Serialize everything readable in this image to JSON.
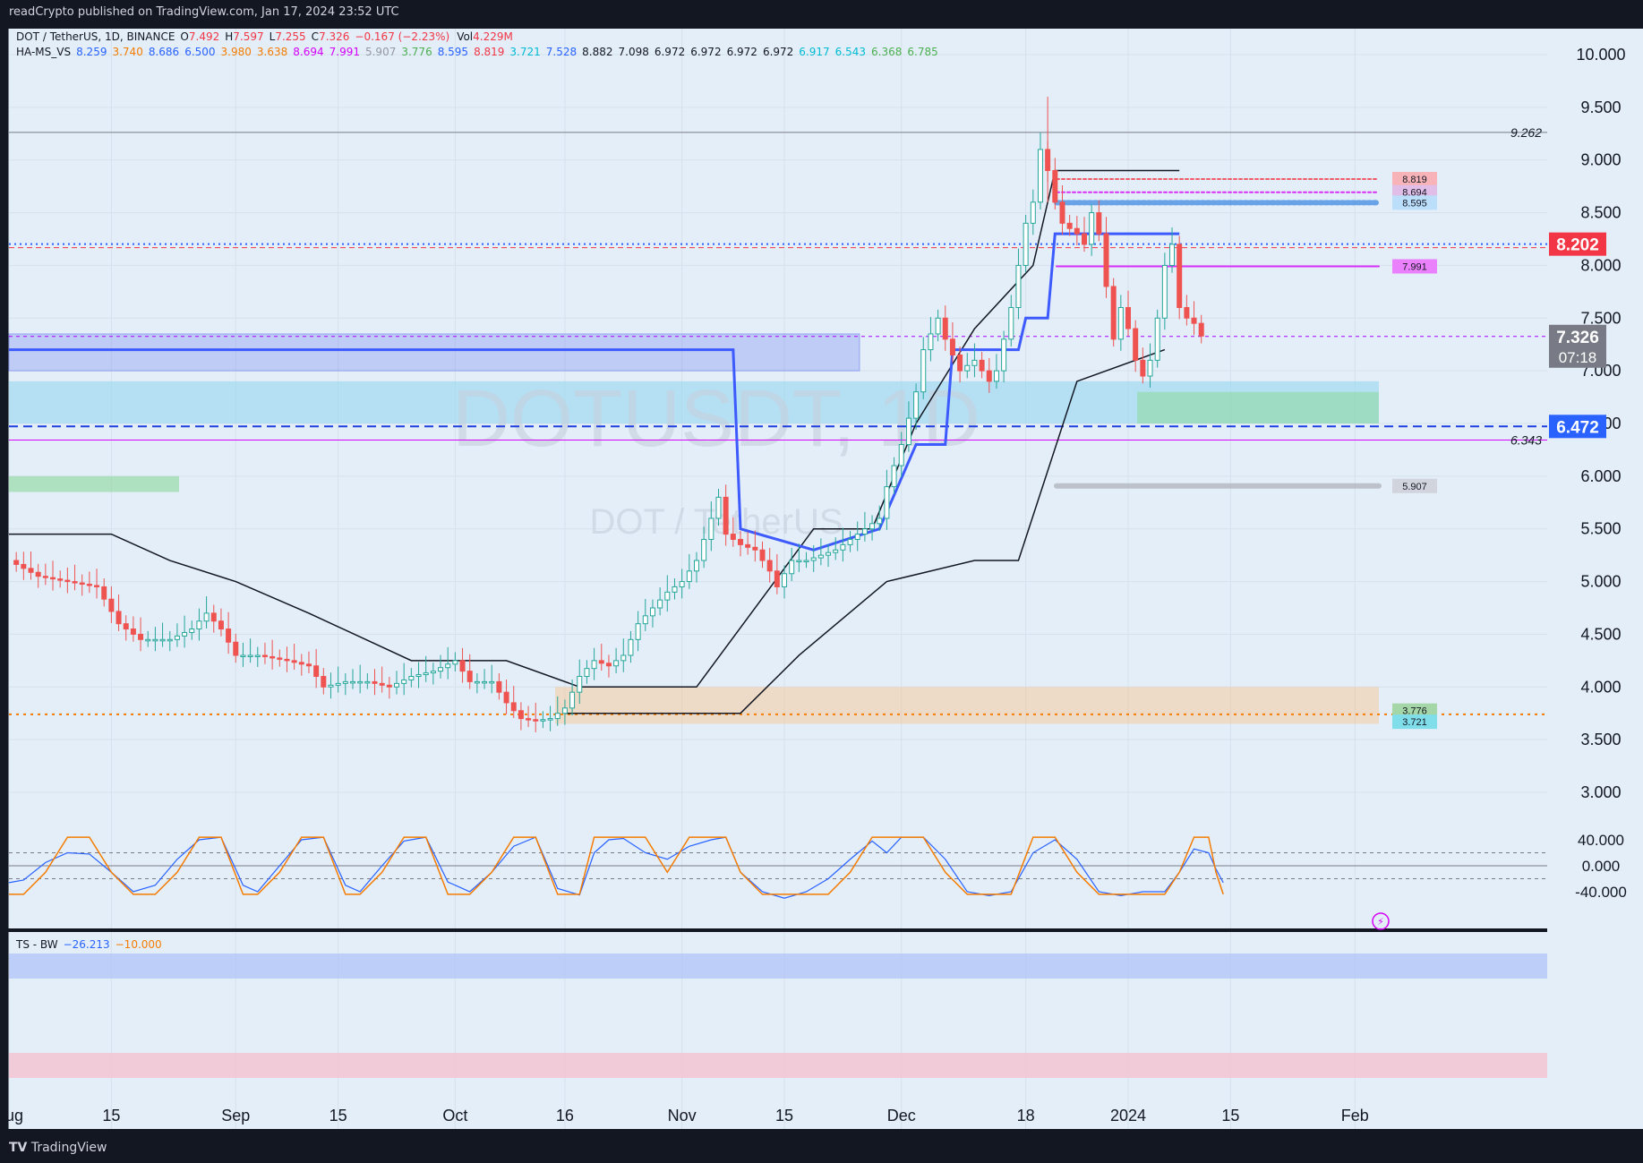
{
  "header": {
    "published_by": "readCrypto published on TradingView.com, Jan 17, 2024 23:52 UTC"
  },
  "footer": {
    "brand": "TradingView"
  },
  "legend": {
    "symbol": "DOT / TetherUS, 1D, BINANCE",
    "ohlc": [
      {
        "k": "O",
        "v": "7.492"
      },
      {
        "k": "H",
        "v": "7.597"
      },
      {
        "k": "L",
        "v": "7.255"
      },
      {
        "k": "C",
        "v": "7.326"
      }
    ],
    "change": "−0.167 (−2.23%)",
    "vol_label": "Vol",
    "vol_value": "4.229M",
    "indicator_name": "HA-MS_VS",
    "indicator_values": [
      {
        "v": "8.259",
        "c": "#2962ff"
      },
      {
        "v": "3.740",
        "c": "#f57c00"
      },
      {
        "v": "8.686",
        "c": "#2962ff"
      },
      {
        "v": "6.500",
        "c": "#2962ff"
      },
      {
        "v": "3.980",
        "c": "#f57c00"
      },
      {
        "v": "3.638",
        "c": "#f57c00"
      },
      {
        "v": "8.694",
        "c": "#d500f9"
      },
      {
        "v": "7.991",
        "c": "#d500f9"
      },
      {
        "v": "5.907",
        "c": "#9598a1"
      },
      {
        "v": "3.776",
        "c": "#4caf50"
      },
      {
        "v": "8.595",
        "c": "#2962ff"
      },
      {
        "v": "8.819",
        "c": "#f23645"
      },
      {
        "v": "3.721",
        "c": "#00bcd4"
      },
      {
        "v": "7.528",
        "c": "#2962ff"
      },
      {
        "v": "8.882",
        "c": "#131722"
      },
      {
        "v": "7.098",
        "c": "#131722"
      },
      {
        "v": "6.972",
        "c": "#131722"
      },
      {
        "v": "6.972",
        "c": "#131722"
      },
      {
        "v": "6.972",
        "c": "#131722"
      },
      {
        "v": "6.972",
        "c": "#131722"
      },
      {
        "v": "6.917",
        "c": "#00bcd4"
      },
      {
        "v": "6.543",
        "c": "#00bcd4"
      },
      {
        "v": "6.368",
        "c": "#4caf50"
      },
      {
        "v": "6.785",
        "c": "#4caf50"
      }
    ]
  },
  "watermark": {
    "line1": "DOTUSDT, 1D",
    "line2": "DOT / TetherUS"
  },
  "price_axis": {
    "ticks": [
      "10.000",
      "9.500",
      "9.000",
      "8.500",
      "8.000",
      "7.500",
      "7.000",
      "6.500",
      "6.000",
      "5.500",
      "5.000",
      "4.500",
      "4.000",
      "3.500",
      "3.000"
    ],
    "tick_values": [
      10,
      9.5,
      9,
      8.5,
      8,
      7.5,
      7,
      6.5,
      6,
      5.5,
      5,
      4.5,
      4,
      3.5,
      3
    ]
  },
  "price_badges": {
    "high_line": {
      "label": "9.262",
      "value": 9.262
    },
    "low_line": {
      "label": "6.343",
      "value": 6.343
    },
    "red_level": {
      "label": "8.202",
      "value": 8.202,
      "color": "#f23645"
    },
    "current": {
      "label": "7.326",
      "countdown": "07:18",
      "value": 7.326,
      "color": "#787b86"
    },
    "purple_level": {
      "label": "7.319",
      "value": 7.319,
      "color": "#aa00ff"
    },
    "blue_level": {
      "label": "6.472",
      "value": 6.472,
      "color": "#2962ff"
    }
  },
  "right_tags": [
    {
      "label": "8.819",
      "value": 8.819,
      "color": "#f7b3b8"
    },
    {
      "label": "8.694",
      "value": 8.694,
      "color": "#e1bee7"
    },
    {
      "label": "8.595",
      "value": 8.595,
      "color": "#bbdefb"
    },
    {
      "label": "7.991",
      "value": 7.991,
      "color": "#ea80fc"
    },
    {
      "label": "5.907",
      "value": 5.907,
      "color": "#d1d4dc"
    },
    {
      "label": "3.776",
      "value": 3.776,
      "color": "#a5d6a7"
    },
    {
      "label": "3.721",
      "value": 3.721,
      "color": "#80deea"
    }
  ],
  "time_axis": {
    "labels": [
      {
        "label": "Aug",
        "day": 0
      },
      {
        "label": "15",
        "day": 14
      },
      {
        "label": "Sep",
        "day": 31
      },
      {
        "label": "15",
        "day": 45
      },
      {
        "label": "Oct",
        "day": 61
      },
      {
        "label": "16",
        "day": 76
      },
      {
        "label": "Nov",
        "day": 92
      },
      {
        "label": "15",
        "day": 106
      },
      {
        "label": "Dec",
        "day": 122
      },
      {
        "label": "18",
        "day": 139
      },
      {
        "label": "2024",
        "day": 153
      },
      {
        "label": "15",
        "day": 167
      },
      {
        "label": "Feb",
        "day": 184
      }
    ]
  },
  "oscillator": {
    "name": "TS - BW",
    "value1": "−26.213",
    "value2": "−10.000",
    "ticks": [
      "40.000",
      "0.000",
      "-40.000"
    ],
    "tick_values": [
      40,
      0,
      -40
    ],
    "lines": [
      20,
      -20
    ]
  },
  "chart_data": {
    "type": "candlestick",
    "title": "DOTUSDT, 1D",
    "x_unit": "days since 2023-08-01",
    "ylim": [
      3.0,
      10.0
    ],
    "grid": true,
    "series": [
      {
        "name": "DOT / TetherUS",
        "type": "candlestick"
      },
      {
        "name": "TS - BW",
        "type": "line"
      }
    ],
    "price_path": [
      [
        0,
        5.2
      ],
      [
        4,
        5.05
      ],
      [
        8,
        5.0
      ],
      [
        12,
        4.95
      ],
      [
        15,
        4.6
      ],
      [
        18,
        4.45
      ],
      [
        22,
        4.45
      ],
      [
        25,
        4.55
      ],
      [
        27,
        4.7
      ],
      [
        29,
        4.55
      ],
      [
        31,
        4.3
      ],
      [
        34,
        4.3
      ],
      [
        38,
        4.25
      ],
      [
        41,
        4.2
      ],
      [
        43,
        4.0
      ],
      [
        46,
        4.05
      ],
      [
        49,
        4.05
      ],
      [
        52,
        4.0
      ],
      [
        55,
        4.1
      ],
      [
        58,
        4.15
      ],
      [
        61,
        4.25
      ],
      [
        63,
        4.05
      ],
      [
        66,
        4.05
      ],
      [
        68,
        3.85
      ],
      [
        70,
        3.7
      ],
      [
        72,
        3.68
      ],
      [
        74,
        3.7
      ],
      [
        76,
        3.8
      ],
      [
        78,
        4.1
      ],
      [
        80,
        4.25
      ],
      [
        82,
        4.2
      ],
      [
        84,
        4.3
      ],
      [
        86,
        4.6
      ],
      [
        88,
        4.75
      ],
      [
        90,
        4.9
      ],
      [
        92,
        5.0
      ],
      [
        94,
        5.2
      ],
      [
        96,
        5.6
      ],
      [
        97,
        5.8
      ],
      [
        98,
        5.45
      ],
      [
        100,
        5.35
      ],
      [
        102,
        5.3
      ],
      [
        104,
        5.1
      ],
      [
        105,
        4.95
      ],
      [
        107,
        5.2
      ],
      [
        109,
        5.2
      ],
      [
        111,
        5.25
      ],
      [
        113,
        5.3
      ],
      [
        115,
        5.4
      ],
      [
        117,
        5.5
      ],
      [
        119,
        5.6
      ],
      [
        120,
        5.9
      ],
      [
        122,
        6.3
      ],
      [
        124,
        6.8
      ],
      [
        125,
        7.2
      ],
      [
        127,
        7.5
      ],
      [
        128,
        7.3
      ],
      [
        130,
        7.0
      ],
      [
        132,
        7.1
      ],
      [
        134,
        6.9
      ],
      [
        135,
        7.0
      ],
      [
        137,
        7.6
      ],
      [
        138,
        8.0
      ],
      [
        139,
        8.4
      ],
      [
        140,
        8.6
      ],
      [
        141,
        9.1
      ],
      [
        142,
        8.9
      ],
      [
        143,
        8.6
      ],
      [
        144,
        8.4
      ],
      [
        146,
        8.3
      ],
      [
        147,
        8.2
      ],
      [
        148,
        8.5
      ],
      [
        149,
        8.3
      ],
      [
        150,
        7.8
      ],
      [
        151,
        7.3
      ],
      [
        152,
        7.6
      ],
      [
        153,
        7.4
      ],
      [
        154,
        7.1
      ],
      [
        155,
        6.95
      ],
      [
        156,
        7.1
      ],
      [
        157,
        7.5
      ],
      [
        158,
        8.0
      ],
      [
        159,
        8.2
      ],
      [
        160,
        7.6
      ],
      [
        161,
        7.5
      ],
      [
        162,
        7.45
      ],
      [
        163,
        7.33
      ]
    ],
    "high": 9.6,
    "oscillator_path": [
      [
        0,
        -26
      ],
      [
        2,
        -22
      ],
      [
        5,
        5
      ],
      [
        8,
        20
      ],
      [
        11,
        18
      ],
      [
        14,
        -10
      ],
      [
        17,
        -40
      ],
      [
        20,
        -30
      ],
      [
        23,
        10
      ],
      [
        26,
        40
      ],
      [
        29,
        44
      ],
      [
        32,
        -30
      ],
      [
        34,
        -40
      ],
      [
        37,
        0
      ],
      [
        40,
        40
      ],
      [
        43,
        44
      ],
      [
        46,
        -30
      ],
      [
        48,
        -40
      ],
      [
        51,
        0
      ],
      [
        54,
        38
      ],
      [
        57,
        44
      ],
      [
        60,
        -25
      ],
      [
        63,
        -40
      ],
      [
        66,
        -10
      ],
      [
        69,
        30
      ],
      [
        72,
        44
      ],
      [
        75,
        -35
      ],
      [
        78,
        -45
      ],
      [
        80,
        20
      ],
      [
        82,
        40
      ],
      [
        84,
        42
      ],
      [
        87,
        20
      ],
      [
        90,
        10
      ],
      [
        93,
        30
      ],
      [
        96,
        40
      ],
      [
        98,
        44
      ],
      [
        100,
        -10
      ],
      [
        103,
        -40
      ],
      [
        106,
        -50
      ],
      [
        109,
        -40
      ],
      [
        112,
        -20
      ],
      [
        115,
        10
      ],
      [
        118,
        38
      ],
      [
        120,
        20
      ],
      [
        122,
        44
      ],
      [
        125,
        44
      ],
      [
        128,
        10
      ],
      [
        131,
        -40
      ],
      [
        134,
        -46
      ],
      [
        137,
        -40
      ],
      [
        140,
        20
      ],
      [
        143,
        40
      ],
      [
        146,
        10
      ],
      [
        149,
        -40
      ],
      [
        152,
        -46
      ],
      [
        155,
        -40
      ],
      [
        158,
        -40
      ],
      [
        160,
        -10
      ],
      [
        162,
        26
      ],
      [
        164,
        20
      ],
      [
        165,
        -5
      ],
      [
        166,
        -26
      ]
    ]
  }
}
